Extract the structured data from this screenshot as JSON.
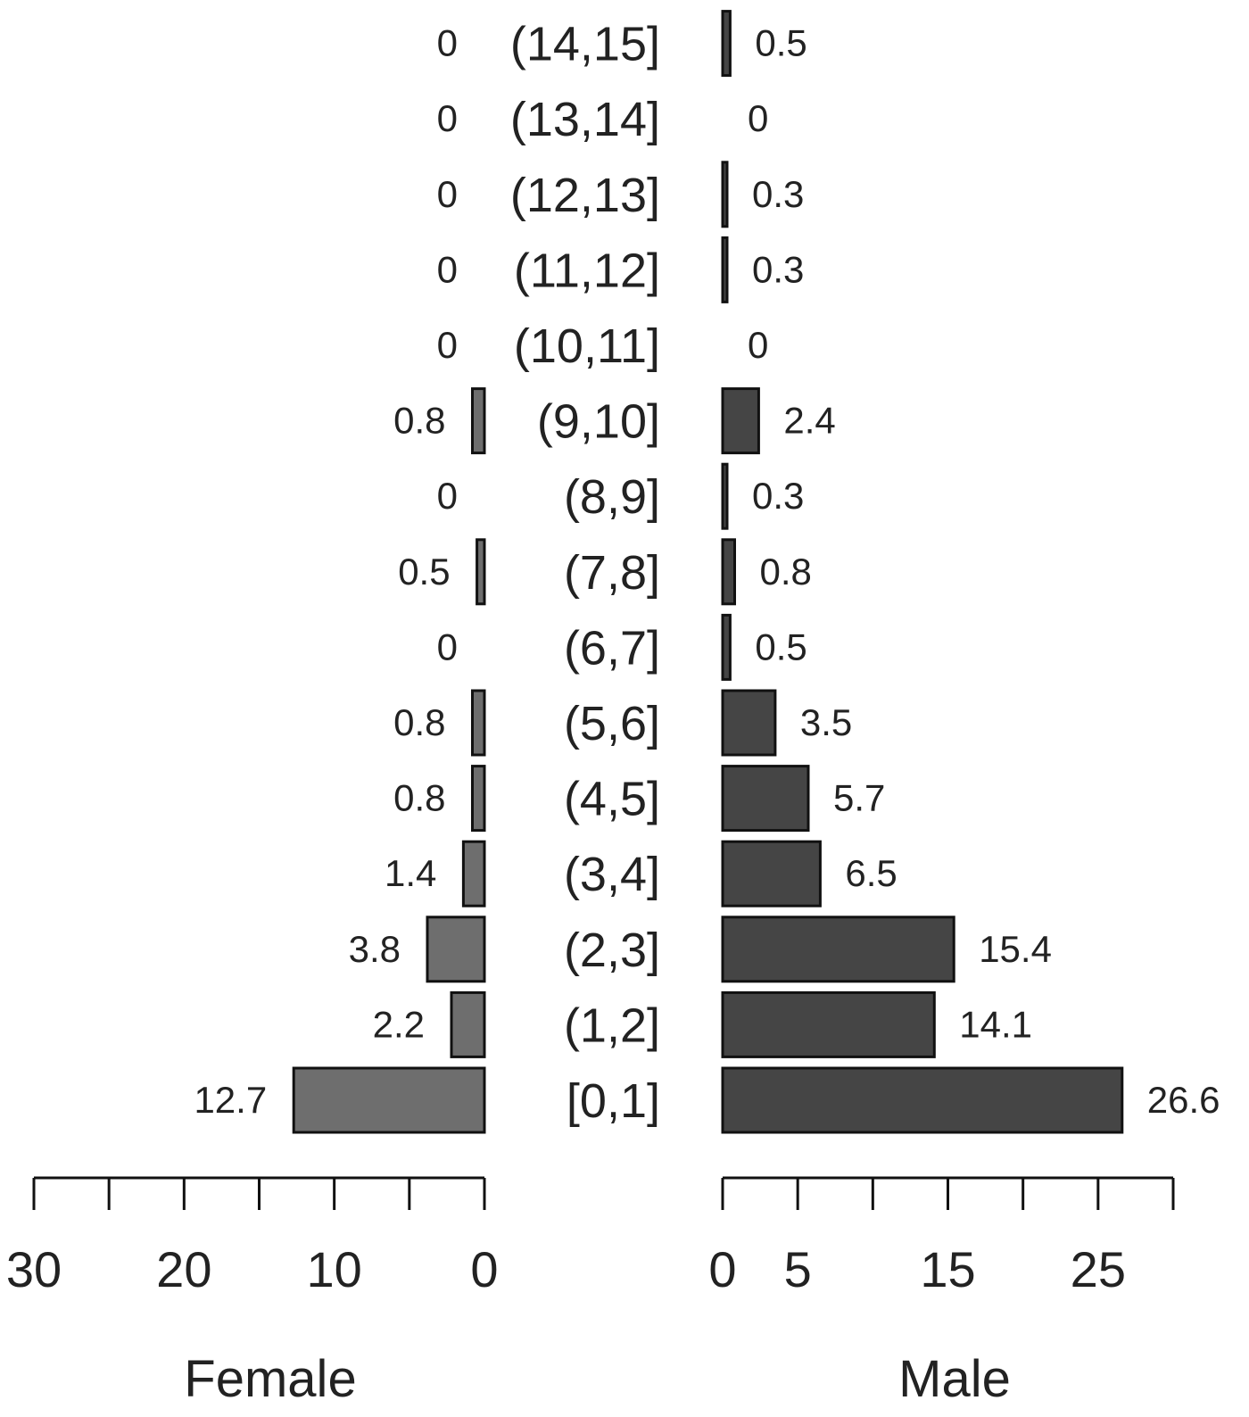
{
  "chart_data": {
    "type": "bar",
    "orientation": "horizontal-pyramid",
    "categories": [
      "[0,1]",
      "(1,2]",
      "(2,3]",
      "(3,4]",
      "(4,5]",
      "(5,6]",
      "(6,7]",
      "(7,8]",
      "(8,9]",
      "(9,10]",
      "(10,11]",
      "(11,12]",
      "(12,13]",
      "(13,14]",
      "(14,15]"
    ],
    "series": [
      {
        "name": "Female",
        "side": "left",
        "color": "#6e6e6e",
        "values": [
          12.7,
          2.2,
          3.8,
          1.4,
          0.8,
          0.8,
          0,
          0.5,
          0,
          0.8,
          0,
          0,
          0,
          0,
          0
        ],
        "labels": [
          "12.7",
          "2.2",
          "3.8",
          "1.4",
          "0.8",
          "0.8",
          "0",
          "0.5",
          "0",
          "0.8",
          "0",
          "0",
          "0",
          "0",
          "0"
        ]
      },
      {
        "name": "Male",
        "side": "right",
        "color": "#454545",
        "values": [
          26.6,
          14.1,
          15.4,
          6.5,
          5.7,
          3.5,
          0.5,
          0.8,
          0.3,
          2.4,
          0,
          0.3,
          0.3,
          0,
          0.5
        ],
        "labels": [
          "26.6",
          "14.1",
          "15.4",
          "6.5",
          "5.7",
          "3.5",
          "0.5",
          "0.8",
          "0.3",
          "2.4",
          "0",
          "0.3",
          "0.3",
          "0",
          "0.5"
        ]
      }
    ],
    "left_axis": {
      "title": "Female",
      "lim": [
        0,
        30
      ],
      "ticks": [
        0,
        5,
        10,
        15,
        20,
        25,
        30
      ],
      "tick_labels": [
        "0",
        "",
        "10",
        "",
        "20",
        "",
        "30"
      ]
    },
    "right_axis": {
      "title": "Male",
      "lim": [
        0,
        30
      ],
      "ticks": [
        0,
        5,
        10,
        15,
        20,
        25,
        30
      ],
      "tick_labels": [
        "0",
        "5",
        "",
        "15",
        "",
        "25",
        ""
      ]
    },
    "grid": false,
    "legend": "none"
  }
}
